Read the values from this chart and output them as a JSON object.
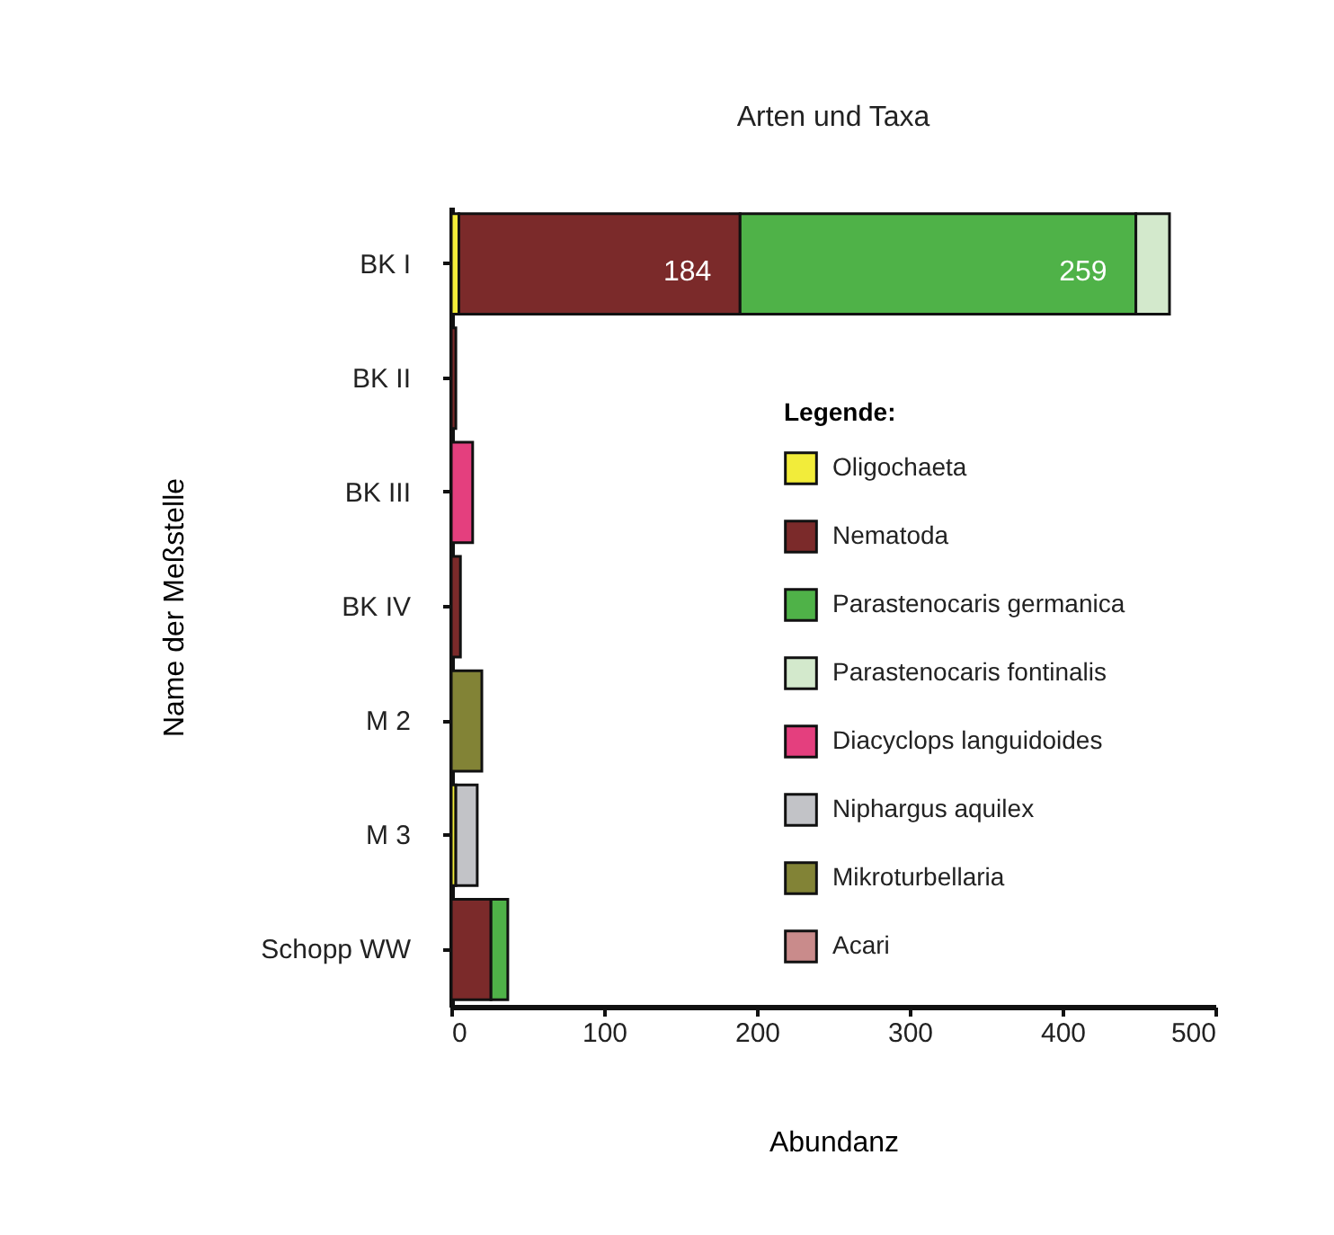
{
  "chart_data": {
    "type": "bar",
    "orientation": "horizontal",
    "stacked": true,
    "title": "Arten und Taxa",
    "xlabel": "Abundanz",
    "ylabel": "Name der Meßstelle",
    "legend_title": "Legende:",
    "legend": "right",
    "categories": [
      "BK I",
      "BK II",
      "BK III",
      "BK IV",
      "M 2",
      "M 3",
      "Schopp WW"
    ],
    "xlim": [
      0,
      500
    ],
    "xticks": [
      0,
      100,
      200,
      300,
      400,
      500
    ],
    "series": [
      {
        "name": "Oligochaeta",
        "color": "#f2ec3a",
        "values": [
          5,
          null,
          null,
          null,
          null,
          3,
          null
        ]
      },
      {
        "name": "Nematoda",
        "color": "#7b2a2a",
        "values": [
          184,
          3,
          null,
          6,
          null,
          null,
          26
        ],
        "value_labels": [
          "184",
          null,
          null,
          null,
          null,
          null,
          null
        ]
      },
      {
        "name": "Parastenocaris germanica",
        "color": "#4fb248",
        "values": [
          259,
          null,
          null,
          null,
          null,
          null,
          11
        ],
        "value_labels": [
          "259",
          null,
          null,
          null,
          null,
          null,
          null
        ]
      },
      {
        "name": "Parastenocaris fontinalis",
        "color": "#d3e9cc",
        "values": [
          22,
          null,
          null,
          null,
          null,
          null,
          null
        ]
      },
      {
        "name": "Diacyclops languidoides",
        "color": "#e43f7e",
        "values": [
          null,
          null,
          14,
          null,
          null,
          null,
          null
        ]
      },
      {
        "name": "Niphargus aquilex",
        "color": "#c2c3c7",
        "values": [
          null,
          null,
          null,
          null,
          null,
          14,
          null
        ]
      },
      {
        "name": "Mikroturbellaria",
        "color": "#828336",
        "values": [
          null,
          null,
          null,
          null,
          20,
          null,
          null
        ]
      },
      {
        "name": "Acari",
        "color": "#c98b8b",
        "values": [
          null,
          null,
          null,
          null,
          null,
          null,
          null
        ]
      }
    ]
  }
}
